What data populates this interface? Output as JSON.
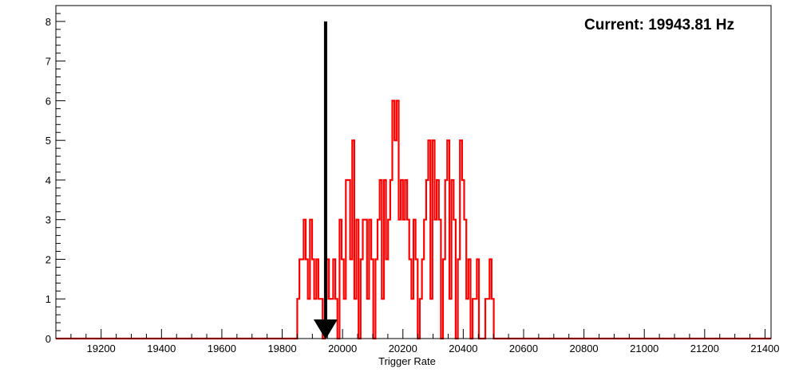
{
  "chart_data": {
    "type": "line",
    "style": "step-histogram",
    "annotation": "Current: 19943.81 Hz",
    "xlabel": "Trigger Rate",
    "ylabel": "",
    "xlim": [
      19050,
      21420
    ],
    "ylim": [
      0,
      8.4
    ],
    "x_ticks": [
      19200,
      19400,
      19600,
      19800,
      20000,
      20200,
      20400,
      20600,
      20800,
      21000,
      21200,
      21400
    ],
    "y_ticks": [
      0,
      1,
      2,
      3,
      4,
      5,
      6,
      7,
      8
    ],
    "grid": false,
    "colors": {
      "series": "#ff0000",
      "marker": "#000000",
      "axis": "#000000"
    },
    "marker": {
      "type": "arrow",
      "x": 19943.81,
      "y_from": 8,
      "y_to": 0
    },
    "series": [
      {
        "x": [
          19050,
          19850,
          19857,
          19864,
          19871,
          19878,
          19885,
          19892,
          19899,
          19906,
          19913,
          19920,
          19927,
          19934,
          19941,
          19948,
          19955,
          19962,
          19969,
          19976,
          19983,
          19990,
          19997,
          20004,
          20011,
          20018,
          20025,
          20032,
          20039,
          20046,
          20053,
          20060,
          20067,
          20074,
          20081,
          20088,
          20095,
          20102,
          20109,
          20116,
          20123,
          20130,
          20137,
          20144,
          20151,
          20158,
          20165,
          20172,
          20179,
          20186,
          20193,
          20200,
          20207,
          20214,
          20221,
          20228,
          20235,
          20242,
          20249,
          20256,
          20263,
          20270,
          20277,
          20284,
          20291,
          20298,
          20305,
          20312,
          20319,
          20326,
          20333,
          20340,
          20347,
          20354,
          20361,
          20368,
          20375,
          20382,
          20389,
          20396,
          20403,
          20410,
          20417,
          20424,
          20431,
          20438,
          20445,
          20452,
          20459,
          20466,
          20473,
          20480,
          20487,
          20494,
          20501,
          20508,
          20515,
          20522,
          20529,
          20536,
          20543,
          20550,
          20557,
          20564,
          20571,
          20578,
          20585,
          20592,
          20599,
          20606,
          20613,
          20620,
          20627,
          20634,
          20641,
          21420
        ],
        "values": [
          0,
          1,
          2,
          2,
          3,
          2,
          1,
          3,
          2,
          1,
          2,
          1,
          1,
          0,
          1,
          2,
          1,
          1,
          2,
          1,
          0,
          3,
          2,
          1,
          4,
          4,
          2,
          5,
          1,
          3,
          0,
          2,
          3,
          3,
          1,
          3,
          2,
          0,
          2,
          3,
          4,
          1,
          4,
          2,
          3,
          4,
          6,
          5,
          6,
          3,
          4,
          3,
          4,
          3,
          2,
          1,
          3,
          2,
          0,
          1,
          2,
          3,
          4,
          5,
          1,
          5,
          3,
          4,
          3,
          0,
          2,
          4,
          5,
          1,
          4,
          3,
          0,
          2,
          5,
          4,
          3,
          1,
          2,
          0,
          1,
          1,
          2,
          0,
          0,
          0,
          1,
          1,
          2,
          1,
          0,
          0,
          0,
          0,
          0,
          0,
          0,
          0,
          0,
          0,
          0,
          0,
          0,
          0,
          0,
          0,
          0,
          0,
          0,
          0,
          0,
          0
        ]
      }
    ]
  }
}
